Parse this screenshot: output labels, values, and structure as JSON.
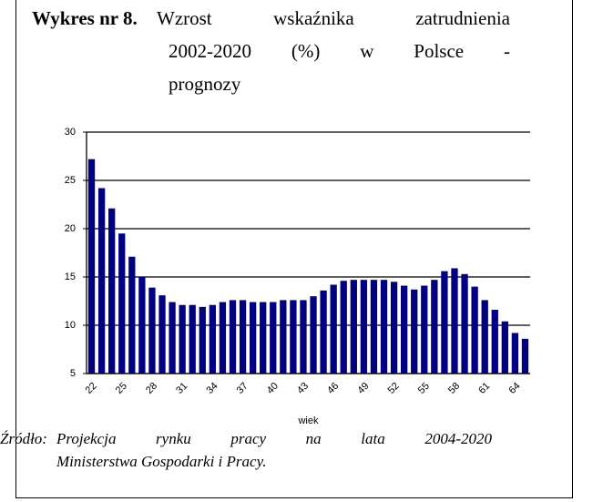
{
  "chart_data": {
    "type": "bar",
    "title_label": "Wykres nr 8.",
    "title_lines": [
      "Wzrost wskaźnika zatrudnienia",
      "2002-2020 (%) w Polsce -",
      "prognozy"
    ],
    "x_label": "wiek",
    "categories": [
      "22",
      null,
      null,
      "25",
      null,
      null,
      "28",
      null,
      null,
      "31",
      null,
      null,
      "34",
      null,
      null,
      "37",
      null,
      null,
      "40",
      null,
      null,
      "43",
      null,
      null,
      "46",
      null,
      null,
      "49",
      null,
      null,
      "52",
      null,
      null,
      "55",
      null,
      null,
      "58",
      null,
      null,
      "61",
      null,
      null,
      "64",
      null
    ],
    "values": [
      27.2,
      24.2,
      22.1,
      19.5,
      17.1,
      15.0,
      13.9,
      13.1,
      12.4,
      12.1,
      12.1,
      11.9,
      12.1,
      12.4,
      12.6,
      12.6,
      12.4,
      12.4,
      12.4,
      12.6,
      12.6,
      12.6,
      13.0,
      13.6,
      14.2,
      14.6,
      14.7,
      14.7,
      14.7,
      14.7,
      14.5,
      14.1,
      13.7,
      14.1,
      14.7,
      15.6,
      15.9,
      15.3,
      14.0,
      12.6,
      11.6,
      10.4,
      9.2,
      8.6
    ],
    "color": "#000080",
    "ylim": [
      5,
      30
    ],
    "yticks": [
      5,
      10,
      15,
      20,
      25,
      30
    ],
    "grid": true,
    "source_label": "Źródło:",
    "source_lines": [
      "Projekcja rynku pracy na lata 2004-2020",
      "Ministerstwa Gospodarki i Pracy."
    ]
  }
}
